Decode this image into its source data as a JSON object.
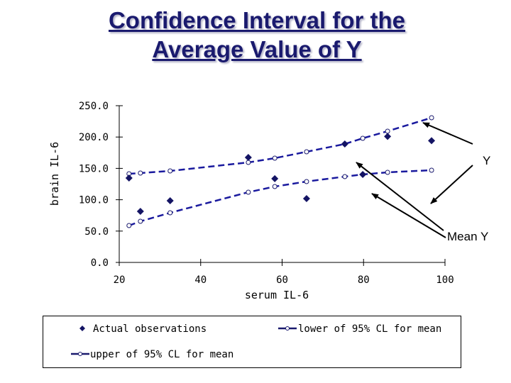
{
  "title_line1": "Confidence Interval for the",
  "title_line2": "Average Value of Y",
  "annotations": {
    "y_label": "Y",
    "mean_label": "Mean Y"
  },
  "legend": {
    "observations": "Actual observations",
    "lower": "lower of 95% CL for mean",
    "upper": "upper of 95% CL for mean"
  },
  "colors": {
    "series": "#1a1a9e",
    "marker_dark": "#141464",
    "axis": "#000000",
    "title": "#1a1a6e"
  },
  "chart_data": {
    "type": "line",
    "title": "Confidence Interval for the Average Value of Y",
    "xlabel": "serum IL-6",
    "ylabel": "brain IL-6",
    "xlim": [
      20,
      100
    ],
    "ylim": [
      0,
      250
    ],
    "x_ticks": [
      "20",
      "40",
      "60",
      "80",
      "100"
    ],
    "y_ticks": [
      "0.0",
      "50.0",
      "100.0",
      "150.0",
      "200.0",
      "250.0"
    ],
    "grid": false,
    "legend_position": "bottom",
    "x": [
      22.4,
      25.2,
      32.5,
      51.7,
      58.2,
      66.0,
      75.4,
      79.8,
      85.9,
      96.7
    ],
    "series": [
      {
        "name": "Actual observations",
        "style": "scatter-diamond",
        "values": [
          134.6,
          81.4,
          98.4,
          167.4,
          133.6,
          101.8,
          188.9,
          140.3,
          201.0,
          194.1
        ]
      },
      {
        "name": "lower of 95% CL for mean",
        "style": "dashed-line-open-circle",
        "values": [
          58.8,
          65.6,
          79.2,
          112.0,
          121.0,
          129.0,
          136.9,
          140.3,
          143.7,
          147.1
        ]
      },
      {
        "name": "upper of 95% CL for mean",
        "style": "dashed-line-open-circle",
        "values": [
          141.4,
          142.5,
          145.9,
          159.5,
          166.3,
          176.5,
          188.9,
          198.0,
          209.3,
          230.8
        ]
      }
    ],
    "annotations": [
      {
        "text": "Y",
        "arrows_to": [
          "upper of 95% CL for mean",
          "lower of 95% CL for mean"
        ]
      },
      {
        "text": "Mean Y",
        "arrows_to": [
          "regression line region"
        ]
      }
    ]
  }
}
